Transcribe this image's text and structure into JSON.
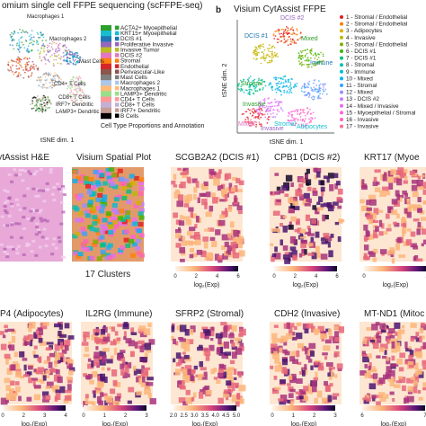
{
  "panel_a": {
    "title": "omium single cell FFPE sequencing (scFFPE-seq)",
    "x_label": "tSNE dim. 1",
    "caption": "Cell Type Proportions and Annotation",
    "cluster_labels": [
      "Macrophages 1",
      "Macrophages 2",
      "Mast Cells",
      "CD4+ T Cells",
      "CD8+ T Cells",
      "IRF7+ Dendritic",
      "LAMP3+ Dendritic"
    ],
    "legend": [
      {
        "name": "ACTA2+ Myoepithelial",
        "color": "#2ca02c"
      },
      {
        "name": "KRT15+ Myoepithelial",
        "color": "#17becf"
      },
      {
        "name": "DCIS #1",
        "color": "#1f77b4"
      },
      {
        "name": "Proliferative Invasive",
        "color": "#9467bd"
      },
      {
        "name": "Invasive Tumor",
        "color": "#bcbd22"
      },
      {
        "name": "DCIS #2",
        "color": "#e377c2"
      },
      {
        "name": "Stromal",
        "color": "#ff7f0e"
      },
      {
        "name": "Endothelial",
        "color": "#d62728"
      },
      {
        "name": "Perivascular-Like",
        "color": "#8c564b"
      },
      {
        "name": "Mast Cells",
        "color": "#7f7f7f"
      },
      {
        "name": "Macrophages 2",
        "color": "#aec7e8"
      },
      {
        "name": "Macrophages 1",
        "color": "#ffbb78"
      },
      {
        "name": "LAMP3+ Dendritic",
        "color": "#98df8a"
      },
      {
        "name": "CD4+ T Cells",
        "color": "#ff9896"
      },
      {
        "name": "CD8+ T Cells",
        "color": "#c5b0d5"
      },
      {
        "name": "IRF7+ Dendritic",
        "color": "#c49c94"
      },
      {
        "name": "B Cells",
        "color": "#000000"
      }
    ]
  },
  "panel_b": {
    "letter": "b",
    "title": "Visium CytAssist FFPE",
    "x_label": "tSNE dim. 1",
    "y_label": "tSNE dim. 2",
    "cluster_labels": [
      "DCIS #2",
      "DCIS #1",
      "Mixed",
      "Immune",
      "Stromal",
      "Invasive",
      "Invasive",
      "Mixed",
      "Stromal",
      "Adipocytes"
    ],
    "legend": [
      {
        "name": "1 - Stromal / Endothelial",
        "color": "#e41a1c"
      },
      {
        "name": "2 - Stromal / Endothelial",
        "color": "#ff7f00"
      },
      {
        "name": "3 - Adipocytes",
        "color": "#d4b000"
      },
      {
        "name": "4 - Invasive",
        "color": "#b8b800"
      },
      {
        "name": "5 - Stromal / Endothelial",
        "color": "#7cae00"
      },
      {
        "name": "6 - DCIS #1",
        "color": "#39b600"
      },
      {
        "name": "7 - DCIS #1",
        "color": "#00bf7d"
      },
      {
        "name": "8 - Stromal",
        "color": "#00c0af"
      },
      {
        "name": "9 - Immune",
        "color": "#00bcd8"
      },
      {
        "name": "10 - Mixed",
        "color": "#00b0f6"
      },
      {
        "name": "11 - Stromal",
        "color": "#35a2ff"
      },
      {
        "name": "12 - Mixed",
        "color": "#9590ff"
      },
      {
        "name": "13 - DCIS #2",
        "color": "#c77cff"
      },
      {
        "name": "14 - Mixed / Invasive",
        "color": "#e76bf3"
      },
      {
        "name": "15 - Myoepithelial / Stromal",
        "color": "#fa62db"
      },
      {
        "name": "16 - Invasive",
        "color": "#ff62bc"
      },
      {
        "name": "17 - Invasive",
        "color": "#ff6c91"
      }
    ]
  },
  "row1": [
    {
      "title": "CytAssist H&E"
    },
    {
      "title": "Visium Spatial Plot",
      "caption": "17 Clusters"
    },
    {
      "title": "SCGB2A2 (DCIS #1)",
      "cbar_label": "log₂(Exp)",
      "cbar_ticks": [
        "0",
        "2",
        "4",
        "6"
      ]
    },
    {
      "title": "CPB1 (DCIS #2)",
      "cbar_label": "log₂(Exp)",
      "cbar_ticks": [
        "0",
        "2",
        "4",
        "6"
      ]
    },
    {
      "title": "KRT17 (Myoe",
      "cbar_label": "log₂(Exp)",
      "cbar_ticks": [
        "0",
        "1"
      ]
    }
  ],
  "row2": [
    {
      "title": "P4 (Adipocytes)",
      "cbar_label": "log₂(Exp)",
      "cbar_ticks": [
        "0",
        "2",
        "3",
        "4"
      ]
    },
    {
      "title": "IL2RG (Immune)",
      "cbar_label": "log₂(Exp)",
      "cbar_ticks": [
        "0",
        "1",
        "2",
        "3"
      ]
    },
    {
      "title": "SFRP2 (Stromal)",
      "cbar_label": "log₂(Exp)",
      "cbar_ticks": [
        "2.0",
        "2.5",
        "3.0",
        "3.5",
        "4.0",
        "4.5",
        "5.0"
      ]
    },
    {
      "title": "CDH2 (Invasive)",
      "cbar_label": "log₂(Exp)",
      "cbar_ticks": [
        "0",
        "1",
        "2",
        "3"
      ]
    },
    {
      "title": "MT-ND1 (Mitoc",
      "cbar_label": "log₂(Exp)",
      "cbar_ticks": [
        "6",
        "7"
      ]
    }
  ]
}
